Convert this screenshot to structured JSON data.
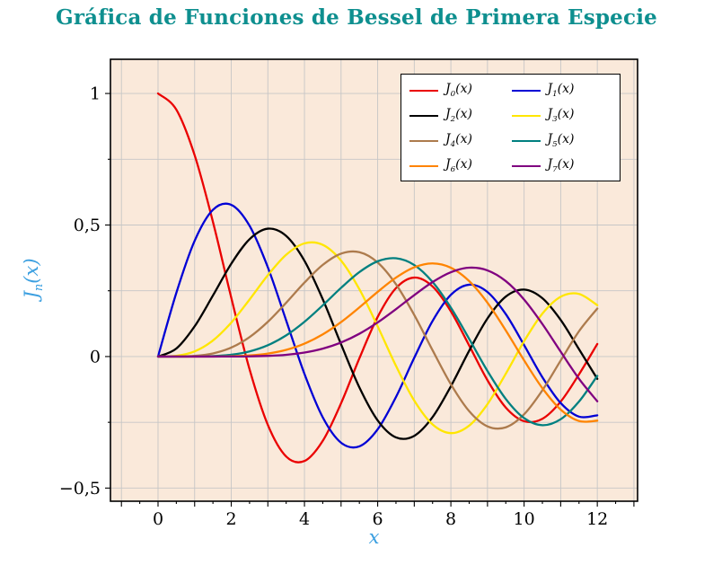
{
  "title": {
    "text": "Gráfica de Funciones de Bessel de Primera Especie",
    "color": "#0e8f8f"
  },
  "axes": {
    "xlabel": "x",
    "ylabel": {
      "base": "J",
      "sub": "n",
      "rest": "(x)"
    },
    "label_color": "#3b9fe0",
    "xticks": [
      {
        "v": 0,
        "label": "0"
      },
      {
        "v": 2,
        "label": "2"
      },
      {
        "v": 4,
        "label": "4"
      },
      {
        "v": 6,
        "label": "6"
      },
      {
        "v": 8,
        "label": "8"
      },
      {
        "v": 10,
        "label": "10"
      },
      {
        "v": 12,
        "label": "12"
      }
    ],
    "yticks": [
      {
        "v": 1,
        "label": "1"
      },
      {
        "v": 0.5,
        "label": "0,5"
      },
      {
        "v": 0,
        "label": "0"
      },
      {
        "v": -0.5,
        "label": "−0,5"
      }
    ],
    "xlim": [
      -1.3,
      13.1
    ],
    "ylim": [
      -0.55,
      1.13
    ],
    "plot_bg": "#fae9da",
    "grid_color": "#c6c6c6",
    "x_grid_step": 1,
    "y_grid_step": 0.25
  },
  "legend": {
    "items": [
      {
        "base": "J",
        "sub": "0",
        "rest": "(x)",
        "color": "#ea0000"
      },
      {
        "base": "J",
        "sub": "1",
        "rest": "(x)",
        "color": "#0000d5"
      },
      {
        "base": "J",
        "sub": "2",
        "rest": "(x)",
        "color": "#000000"
      },
      {
        "base": "J",
        "sub": "3",
        "rest": "(x)",
        "color": "#ffe600"
      },
      {
        "base": "J",
        "sub": "4",
        "rest": "(x)",
        "color": "#ad7b4d"
      },
      {
        "base": "J",
        "sub": "5",
        "rest": "(x)",
        "color": "#008080"
      },
      {
        "base": "J",
        "sub": "6",
        "rest": "(x)",
        "color": "#ff8400"
      },
      {
        "base": "J",
        "sub": "7",
        "rest": "(x)",
        "color": "#800080"
      }
    ]
  },
  "chart_data": {
    "type": "line",
    "title": "Gráfica de Funciones de Bessel de Primera Especie",
    "xlabel": "x",
    "ylabel": "J_n(x)",
    "xlim": [
      -1.3,
      13.1
    ],
    "ylim": [
      -0.55,
      1.13
    ],
    "grid": true,
    "legend_position": "top-right",
    "x": [
      0,
      0.5,
      1,
      1.5,
      2,
      2.5,
      3,
      3.5,
      4,
      4.5,
      5,
      5.5,
      6,
      6.5,
      7,
      7.5,
      8,
      8.5,
      9,
      9.5,
      10,
      10.5,
      11,
      11.5,
      12
    ],
    "series": [
      {
        "key": "j0",
        "name": "J0(x)",
        "color": "#ea0000",
        "values": [
          1,
          0.9385,
          0.7652,
          0.5118,
          0.2239,
          -0.0484,
          -0.2601,
          -0.3801,
          -0.3971,
          -0.3205,
          -0.1776,
          -0.0068,
          0.1506,
          0.2601,
          0.3001,
          0.2663,
          0.1717,
          0.0419,
          -0.0903,
          -0.1939,
          -0.2459,
          -0.2366,
          -0.1712,
          -0.0677,
          0.0477
        ]
      },
      {
        "key": "j1",
        "name": "J1(x)",
        "color": "#0000d5",
        "values": [
          0,
          0.2423,
          0.4401,
          0.5579,
          0.5767,
          0.4971,
          0.3391,
          0.1374,
          -0.066,
          -0.2311,
          -0.3276,
          -0.3414,
          -0.2767,
          -0.1538,
          -0.0047,
          0.1352,
          0.2346,
          0.2731,
          0.2453,
          0.1613,
          0.0435,
          -0.0789,
          -0.1768,
          -0.2284,
          -0.2234
        ]
      },
      {
        "key": "j2",
        "name": "J2(x)",
        "color": "#000000",
        "values": [
          0,
          0.0306,
          0.1149,
          0.2321,
          0.3528,
          0.4461,
          0.4861,
          0.4586,
          0.3641,
          0.2178,
          0.0466,
          -0.1173,
          -0.2429,
          -0.3074,
          -0.3014,
          -0.2303,
          -0.113,
          0.0223,
          0.1448,
          0.2279,
          0.2546,
          0.2216,
          0.139,
          0.0279,
          -0.0849
        ]
      },
      {
        "key": "j3",
        "name": "J3(x)",
        "color": "#ffe600",
        "values": [
          0,
          0.0026,
          0.0196,
          0.061,
          0.1289,
          0.2166,
          0.3091,
          0.3868,
          0.4302,
          0.4247,
          0.3648,
          0.2561,
          0.1148,
          -0.0353,
          -0.1676,
          -0.2581,
          -0.2911,
          -0.2626,
          -0.1809,
          -0.0653,
          0.0584,
          0.1633,
          0.2273,
          0.2381,
          0.1951
        ]
      },
      {
        "key": "j4",
        "name": "J4(x)",
        "color": "#ad7b4d",
        "values": [
          0,
          0.0002,
          0.0025,
          0.0118,
          0.034,
          0.0738,
          0.132,
          0.2044,
          0.2811,
          0.3484,
          0.3912,
          0.3967,
          0.3576,
          0.2748,
          0.1578,
          0.0238,
          -0.1054,
          -0.2077,
          -0.2655,
          -0.2691,
          -0.2196,
          -0.1283,
          -0.015,
          0.0963,
          0.1825
        ]
      },
      {
        "key": "j5",
        "name": "J5(x)",
        "color": "#008080",
        "values": [
          0,
          0,
          0.0002,
          0.0018,
          0.007,
          0.0195,
          0.043,
          0.0804,
          0.1321,
          0.1947,
          0.2611,
          0.3209,
          0.3621,
          0.3736,
          0.3479,
          0.2835,
          0.1858,
          0.0671,
          -0.055,
          -0.1613,
          -0.2341,
          -0.2611,
          -0.2383,
          -0.1711,
          -0.0735
        ]
      },
      {
        "key": "j6",
        "name": "J6(x)",
        "color": "#ff8400",
        "values": [
          0,
          0,
          0,
          0.0002,
          0.0012,
          0.0042,
          0.0114,
          0.0254,
          0.0491,
          0.0843,
          0.131,
          0.1868,
          0.2458,
          0.2999,
          0.3392,
          0.3541,
          0.3376,
          0.2867,
          0.2043,
          0.0993,
          -0.0145,
          -0.1203,
          -0.2016,
          -0.2451,
          -0.2437
        ]
      },
      {
        "key": "j7",
        "name": "J7(x)",
        "color": "#800080",
        "values": [
          0,
          0,
          0,
          0,
          0.0002,
          0.0007,
          0.0025,
          0.0067,
          0.0152,
          0.0301,
          0.0534,
          0.0866,
          0.1296,
          0.1801,
          0.2336,
          0.2832,
          0.3206,
          0.3377,
          0.3275,
          0.2868,
          0.2167,
          0.1236,
          0.0184,
          -0.0847,
          -0.1702
        ]
      }
    ]
  }
}
